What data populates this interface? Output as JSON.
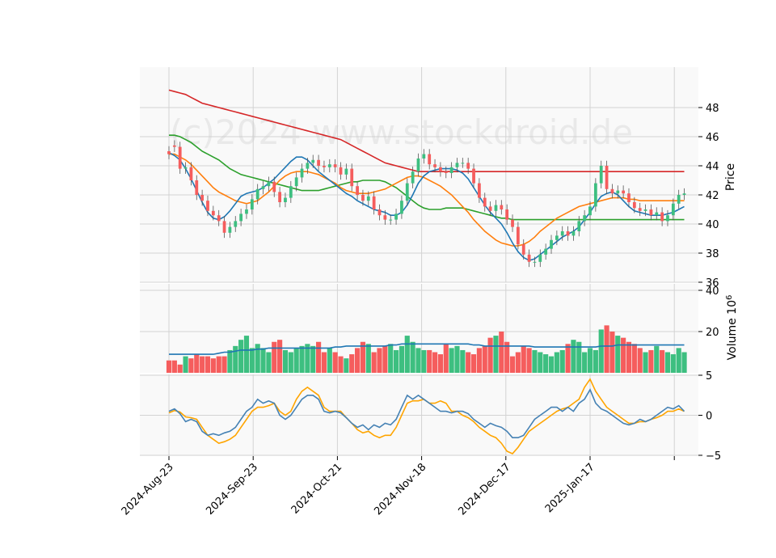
{
  "chart_data": {
    "type": "candlestick",
    "watermark": "(c)2024 www.stockdroid.de",
    "colors": {
      "up": "#3dbf80",
      "down": "#f55d5d",
      "sma_fast": "#1f77b4",
      "sma_mid": "#ff7f0e",
      "sma_slow": "#2ca02c",
      "sma_long": "#d62728",
      "vol_avg": "#1f77b4",
      "macd": "#4682b4",
      "signal": "#ffa500",
      "grid": "#d3d3d3",
      "panel_bg": "#f9f9f9"
    },
    "x_ticks": [
      "2024-Aug-23",
      "2024-Sep-23",
      "2024-Oct-21",
      "2024-Nov-18",
      "2024-Dec-17",
      "2025-Jan-17",
      ""
    ],
    "price_panel": {
      "ylabel": "Price",
      "ylim": [
        36,
        50
      ],
      "yticks": [
        "36",
        "38",
        "40",
        "42",
        "44",
        "46",
        "48"
      ],
      "opens": [
        45.0,
        45.4,
        45.3,
        43.8,
        43.9,
        43.0,
        42.0,
        41.6,
        40.9,
        40.6,
        40.2,
        39.4,
        39.8,
        40.2,
        40.7,
        41.0,
        41.7,
        42.4,
        42.6,
        42.9,
        42.2,
        41.5,
        41.8,
        42.6,
        43.2,
        43.8,
        44.2,
        44.4,
        44.0,
        43.9,
        44.1,
        43.9,
        43.4,
        43.8,
        42.6,
        42.0,
        41.6,
        41.9,
        41.0,
        40.6,
        40.3,
        40.3,
        40.7,
        41.6,
        42.8,
        43.6,
        44.5,
        44.8,
        44.1,
        43.9,
        43.6,
        43.5,
        43.9,
        44.2,
        44.2,
        43.8,
        42.8,
        41.8,
        41.2,
        40.9,
        41.3,
        41.0,
        40.3,
        39.8,
        38.6,
        37.9,
        37.4,
        37.4,
        37.9,
        38.3,
        38.9,
        39.2,
        39.5,
        39.2,
        39.5,
        40.2,
        40.6,
        41.2,
        42.8,
        44.0,
        42.4,
        42.1,
        42.3,
        42.1,
        41.5,
        41.1,
        40.9,
        41.0,
        40.6,
        40.8,
        40.2,
        40.6,
        41.4,
        42.0
      ],
      "closes": [
        44.8,
        45.3,
        43.8,
        43.9,
        43.0,
        42.0,
        41.6,
        40.9,
        40.6,
        40.2,
        39.4,
        39.8,
        40.2,
        40.7,
        41.0,
        41.7,
        42.4,
        42.6,
        42.9,
        42.2,
        41.5,
        41.8,
        42.6,
        43.2,
        43.8,
        44.2,
        44.4,
        44.0,
        43.9,
        44.1,
        43.9,
        43.4,
        43.8,
        42.6,
        42.0,
        41.6,
        41.9,
        41.0,
        40.6,
        40.3,
        40.3,
        40.7,
        41.6,
        42.8,
        43.6,
        44.5,
        44.8,
        44.1,
        43.9,
        43.6,
        43.5,
        43.9,
        44.2,
        44.2,
        43.8,
        42.8,
        41.8,
        41.2,
        40.9,
        41.3,
        41.0,
        40.3,
        39.8,
        38.6,
        37.9,
        37.4,
        37.4,
        37.9,
        38.3,
        38.9,
        39.2,
        39.5,
        39.2,
        39.5,
        40.2,
        40.6,
        41.2,
        42.8,
        44.0,
        42.4,
        42.1,
        42.3,
        42.1,
        41.5,
        41.1,
        40.9,
        41.0,
        40.6,
        40.8,
        40.2,
        40.6,
        41.4,
        42.0,
        42.1
      ],
      "sma_fast": [
        44.9,
        44.7,
        44.4,
        43.8,
        43.1,
        42.3,
        41.5,
        40.8,
        40.4,
        40.3,
        40.5,
        40.9,
        41.4,
        41.9,
        42.1,
        42.2,
        42.3,
        42.5,
        42.8,
        43.1,
        43.5,
        43.9,
        44.3,
        44.6,
        44.6,
        44.4,
        44.0,
        43.6,
        43.3,
        43.0,
        42.7,
        42.4,
        42.1,
        41.9,
        41.6,
        41.4,
        41.2,
        41.0,
        40.9,
        40.8,
        40.6,
        40.6,
        40.8,
        41.3,
        42.0,
        42.8,
        43.3,
        43.6,
        43.7,
        43.8,
        43.8,
        43.8,
        43.7,
        43.5,
        43.1,
        42.5,
        41.9,
        41.3,
        40.8,
        40.4,
        40.0,
        39.4,
        38.7,
        38.1,
        37.7,
        37.5,
        37.6,
        37.9,
        38.2,
        38.5,
        38.8,
        39.1,
        39.3,
        39.5,
        39.8,
        40.3,
        40.8,
        41.4,
        41.9,
        42.1,
        42.2,
        42.0,
        41.6,
        41.2,
        40.9,
        40.8,
        40.7,
        40.6,
        40.6,
        40.6,
        40.7,
        40.8,
        41.0,
        41.2
      ],
      "sma_mid": [
        44.8,
        44.8,
        44.6,
        44.4,
        44.1,
        43.7,
        43.3,
        42.9,
        42.5,
        42.2,
        42.0,
        41.8,
        41.6,
        41.5,
        41.4,
        41.5,
        41.6,
        41.9,
        42.2,
        42.6,
        43.0,
        43.3,
        43.5,
        43.6,
        43.6,
        43.6,
        43.5,
        43.4,
        43.2,
        43.0,
        42.8,
        42.5,
        42.3,
        42.2,
        42.1,
        42.1,
        42.1,
        42.2,
        42.3,
        42.4,
        42.6,
        42.8,
        43.0,
        43.2,
        43.3,
        43.3,
        43.2,
        43.0,
        42.8,
        42.6,
        42.3,
        42.0,
        41.6,
        41.2,
        40.8,
        40.3,
        39.9,
        39.5,
        39.2,
        38.9,
        38.7,
        38.6,
        38.5,
        38.5,
        38.6,
        38.8,
        39.1,
        39.5,
        39.8,
        40.1,
        40.4,
        40.6,
        40.8,
        41.0,
        41.2,
        41.3,
        41.4,
        41.5,
        41.6,
        41.7,
        41.8,
        41.8,
        41.8,
        41.7,
        41.7,
        41.6,
        41.6,
        41.6,
        41.6,
        41.6,
        41.6,
        41.6,
        41.6,
        41.6
      ],
      "sma_slow": [
        46.1,
        46.1,
        46.0,
        45.8,
        45.6,
        45.3,
        45.0,
        44.8,
        44.6,
        44.4,
        44.1,
        43.8,
        43.6,
        43.4,
        43.3,
        43.2,
        43.1,
        43.0,
        42.9,
        42.8,
        42.7,
        42.6,
        42.5,
        42.4,
        42.3,
        42.3,
        42.3,
        42.3,
        42.4,
        42.5,
        42.6,
        42.7,
        42.8,
        42.9,
        42.9,
        43.0,
        43.0,
        43.0,
        43.0,
        42.9,
        42.7,
        42.5,
        42.2,
        41.9,
        41.6,
        41.3,
        41.1,
        41.0,
        41.0,
        41.0,
        41.1,
        41.1,
        41.1,
        41.1,
        41.0,
        40.9,
        40.8,
        40.7,
        40.6,
        40.5,
        40.4,
        40.4,
        40.3,
        40.3,
        40.3,
        40.3,
        40.3,
        40.3,
        40.3,
        40.3,
        40.3,
        40.3,
        40.3,
        40.3,
        40.3,
        40.3,
        40.3,
        40.3,
        40.3,
        40.3,
        40.3,
        40.3,
        40.3,
        40.3,
        40.3,
        40.3,
        40.3,
        40.3,
        40.3,
        40.3,
        40.3,
        40.3,
        40.3,
        40.3
      ],
      "sma_long": [
        49.2,
        49.1,
        49.0,
        48.9,
        48.7,
        48.5,
        48.3,
        48.2,
        48.1,
        48.0,
        47.9,
        47.8,
        47.7,
        47.6,
        47.5,
        47.4,
        47.3,
        47.2,
        47.1,
        47.0,
        46.9,
        46.8,
        46.7,
        46.6,
        46.5,
        46.4,
        46.3,
        46.2,
        46.1,
        46.0,
        45.9,
        45.8,
        45.6,
        45.4,
        45.2,
        45.0,
        44.8,
        44.6,
        44.4,
        44.2,
        44.1,
        44.0,
        43.9,
        43.8,
        43.7,
        43.6,
        43.6,
        43.6,
        43.6,
        43.6,
        43.6,
        43.6,
        43.6,
        43.6,
        43.6,
        43.6,
        43.6,
        43.6,
        43.6,
        43.6,
        43.6,
        43.6,
        43.6,
        43.6,
        43.6,
        43.6,
        43.6,
        43.6,
        43.6,
        43.6,
        43.6,
        43.6,
        43.6,
        43.6,
        43.6,
        43.6,
        43.6,
        43.6,
        43.6,
        43.6,
        43.6,
        43.6,
        43.6,
        43.6,
        43.6,
        43.6,
        43.6,
        43.6,
        43.6,
        43.6,
        43.6,
        43.6,
        43.6,
        43.6
      ]
    },
    "volume_panel": {
      "ylabel": "Volume",
      "ylabel_exp": "6",
      "ylim": [
        0,
        40
      ],
      "yticks": [
        "20",
        "40"
      ],
      "values": [
        6,
        6,
        4,
        8,
        7,
        9,
        8,
        8,
        7,
        8,
        8,
        11,
        13,
        16,
        18,
        12,
        14,
        12,
        10,
        15,
        16,
        11,
        10,
        12,
        13,
        14,
        13,
        15,
        10,
        12,
        10,
        8,
        7,
        9,
        12,
        15,
        14,
        10,
        12,
        13,
        14,
        11,
        13,
        18,
        15,
        12,
        11,
        11,
        10,
        9,
        14,
        12,
        13,
        11,
        10,
        9,
        12,
        13,
        17,
        18,
        20,
        15,
        8,
        10,
        13,
        12,
        11,
        10,
        9,
        8,
        10,
        11,
        14,
        16,
        15,
        10,
        12,
        11,
        21,
        23,
        20,
        18,
        17,
        15,
        14,
        12,
        10,
        11,
        13,
        11,
        10,
        9,
        12,
        10
      ],
      "avg": [
        9,
        9,
        9,
        9,
        9,
        9,
        9,
        9,
        9,
        9.5,
        10,
        10,
        10.5,
        11,
        11,
        11,
        11.5,
        11.5,
        12,
        12,
        12,
        12,
        12,
        12,
        12,
        12,
        12,
        12,
        12,
        12,
        12.5,
        12.5,
        13,
        13,
        13,
        13,
        13,
        13,
        13,
        13,
        13.5,
        13.5,
        14,
        14,
        14,
        14,
        14,
        14,
        14,
        14,
        14,
        14,
        14,
        14,
        14,
        13.5,
        13.5,
        13,
        13,
        13,
        13,
        13,
        13,
        13,
        13,
        13,
        12.5,
        12.5,
        12.5,
        12.5,
        12.5,
        12.5,
        12.5,
        12.5,
        12.5,
        12.5,
        12.5,
        12.5,
        13,
        13,
        13,
        13.5,
        13.5,
        13.5,
        13.5,
        13.5,
        13.5,
        13.5,
        13.5,
        13.5,
        13.5,
        13.5,
        13.5,
        13.5
      ]
    },
    "macd_panel": {
      "ylim": [
        -5,
        5
      ],
      "yticks": [
        "-5",
        "0",
        "5"
      ],
      "macd": [
        0.5,
        0.8,
        0.2,
        -0.8,
        -0.5,
        -0.8,
        -2.0,
        -2.5,
        -2.3,
        -2.5,
        -2.2,
        -2.0,
        -1.5,
        -0.5,
        0.5,
        1.0,
        2.0,
        1.5,
        1.8,
        1.5,
        0.0,
        -0.5,
        0.0,
        1.0,
        2.0,
        2.5,
        2.5,
        2.0,
        0.5,
        0.3,
        0.5,
        0.3,
        -0.3,
        -1.0,
        -1.5,
        -1.2,
        -1.8,
        -1.2,
        -1.5,
        -1.0,
        -1.2,
        -0.5,
        1.0,
        2.5,
        2.0,
        2.5,
        2.0,
        1.5,
        1.0,
        0.5,
        0.5,
        0.3,
        0.5,
        0.5,
        0.2,
        -0.5,
        -1.0,
        -1.5,
        -1.0,
        -1.3,
        -1.5,
        -2.0,
        -2.8,
        -2.8,
        -2.5,
        -1.5,
        -0.5,
        0.0,
        0.5,
        1.0,
        1.0,
        0.5,
        1.0,
        0.5,
        1.5,
        2.0,
        3.2,
        1.5,
        0.8,
        0.5,
        0.0,
        -0.5,
        -1.0,
        -1.2,
        -1.0,
        -0.5,
        -0.8,
        -0.5,
        0.0,
        0.5,
        1.0,
        0.8,
        1.2,
        0.5
      ],
      "signal": [
        0.3,
        0.6,
        0.4,
        -0.2,
        -0.3,
        -0.5,
        -1.5,
        -2.5,
        -3.0,
        -3.5,
        -3.3,
        -3.0,
        -2.5,
        -1.5,
        -0.5,
        0.5,
        1.0,
        1.0,
        1.2,
        1.5,
        0.5,
        0.0,
        0.5,
        2.0,
        3.0,
        3.5,
        3.0,
        2.5,
        1.0,
        0.5,
        0.5,
        0.5,
        -0.3,
        -1.0,
        -1.8,
        -2.2,
        -2.0,
        -2.5,
        -2.8,
        -2.5,
        -2.5,
        -1.5,
        0.0,
        1.5,
        1.8,
        1.8,
        2.0,
        1.5,
        1.5,
        1.8,
        1.5,
        0.5,
        0.5,
        0.0,
        -0.3,
        -0.8,
        -1.5,
        -2.0,
        -2.5,
        -2.8,
        -3.5,
        -4.5,
        -4.8,
        -4.0,
        -3.0,
        -2.0,
        -1.5,
        -1.0,
        -0.5,
        0.0,
        0.5,
        0.8,
        1.0,
        1.5,
        2.0,
        3.5,
        4.5,
        3.0,
        2.0,
        1.0,
        0.5,
        0.0,
        -0.5,
        -1.0,
        -1.0,
        -0.8,
        -0.8,
        -0.5,
        -0.3,
        0.0,
        0.5,
        0.5,
        0.8,
        0.5
      ]
    }
  }
}
